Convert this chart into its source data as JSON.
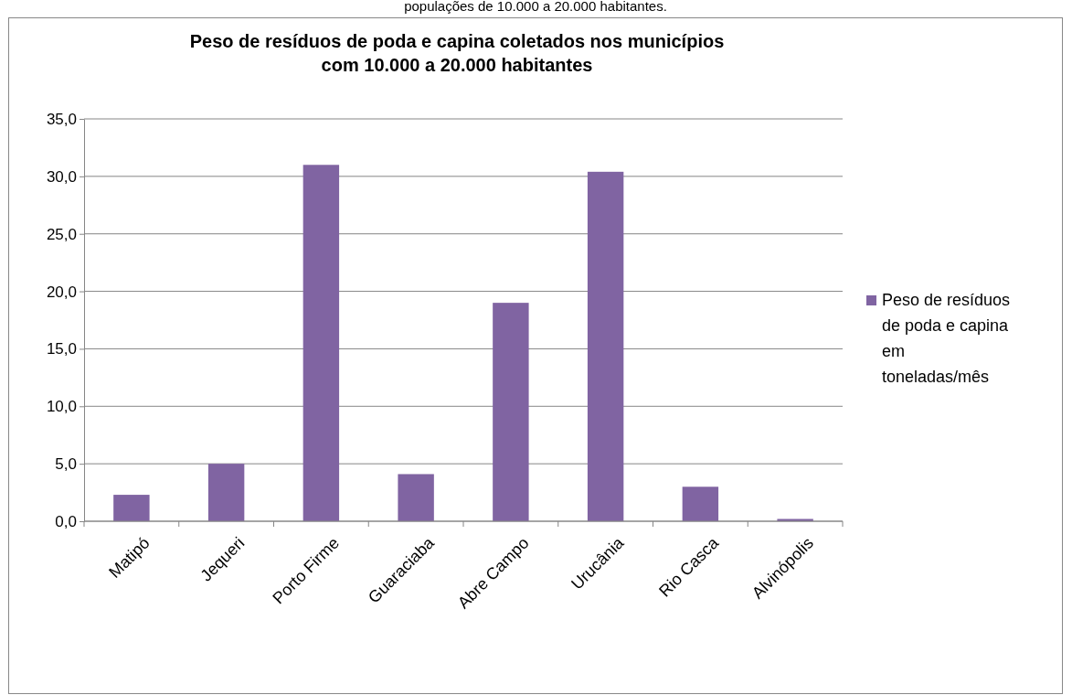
{
  "chart_data": {
    "type": "bar",
    "title": "Peso de resíduos de poda e capina coletados nos municípios com 10.000 a 20.000 habitantes",
    "annotations": [
      "populações de 10.000 a 20.000 habitantes."
    ],
    "categories": [
      "Matipó",
      "Jequeri",
      "Porto Firme",
      "Guaraciaba",
      "Abre Campo",
      "Urucânia",
      "Rio Casca",
      "Alvinópolis"
    ],
    "series": [
      {
        "name": "Peso de resíduos de poda e capina em toneladas/mês",
        "color": "#8064a2",
        "values": [
          2.3,
          5.0,
          31.0,
          4.1,
          19.0,
          30.4,
          3.0,
          0.2
        ]
      }
    ],
    "ylim": [
      0,
      35
    ],
    "yticks": [
      {
        "value": 0,
        "label": "0,0"
      },
      {
        "value": 5,
        "label": "5,0"
      },
      {
        "value": 10,
        "label": "10,0"
      },
      {
        "value": 15,
        "label": "15,0"
      },
      {
        "value": 20,
        "label": "20,0"
      },
      {
        "value": 25,
        "label": "25,0"
      },
      {
        "value": 30,
        "label": "30,0"
      },
      {
        "value": 35,
        "label": "35,0"
      }
    ],
    "grid": "y",
    "legend": "right"
  }
}
